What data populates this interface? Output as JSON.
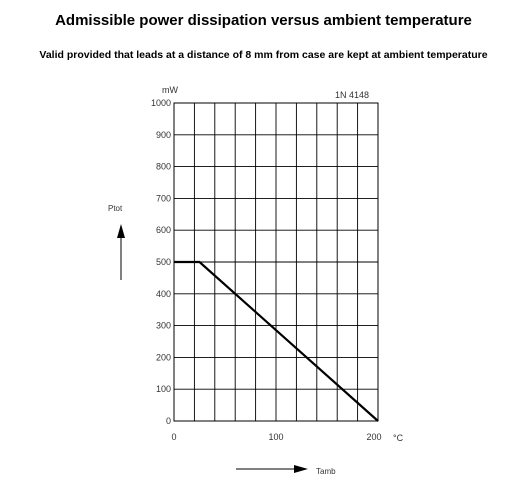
{
  "title": "Admissible power dissipation versus ambient temperature",
  "subtitle": "Valid provided that leads at a distance of 8 mm from case are kept at ambient temperature",
  "chart_data": {
    "type": "line",
    "title": "Admissible power dissipation versus ambient temperature",
    "subtitle": "Valid provided that leads at a distance of 8 mm from case are kept at ambient temperature",
    "annotation": "1N 4148",
    "xlabel": "Tamb",
    "xunit": "°C",
    "ylabel": "Ptot",
    "yunit": "mW",
    "xlim": [
      0,
      200
    ],
    "ylim": [
      0,
      1000
    ],
    "grid": true,
    "x_tick_labels": [
      "0",
      "100",
      "200"
    ],
    "x_tick_values": [
      0,
      100,
      200
    ],
    "y_ticks": [
      0,
      100,
      200,
      300,
      400,
      500,
      600,
      700,
      800,
      900,
      1000
    ],
    "series": [
      {
        "x": [
          0,
          25,
          200
        ],
        "y": [
          500,
          500,
          0
        ]
      }
    ]
  }
}
